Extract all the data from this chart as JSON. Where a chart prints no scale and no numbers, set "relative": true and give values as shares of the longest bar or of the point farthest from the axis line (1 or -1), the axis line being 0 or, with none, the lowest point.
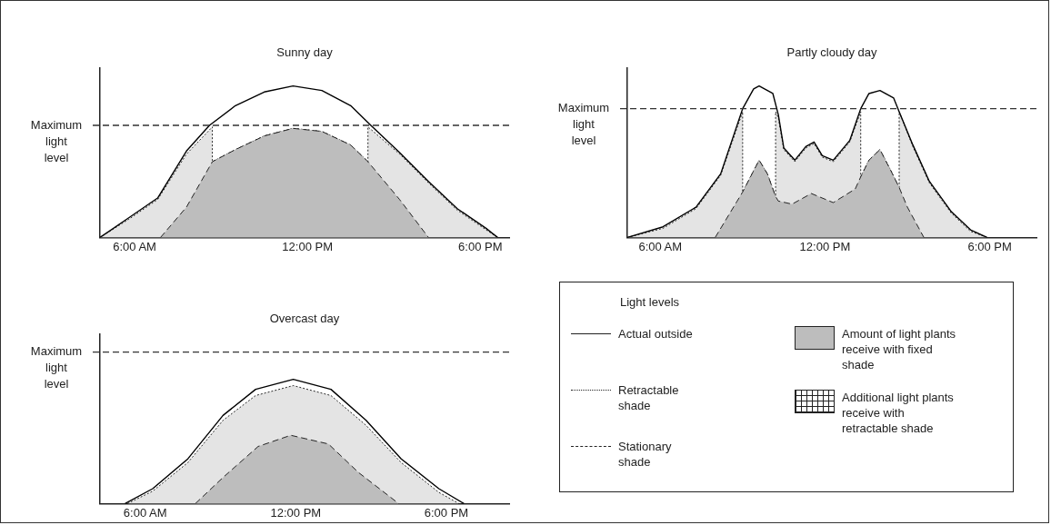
{
  "chart_data": [
    {
      "type": "line",
      "title": "Sunny day",
      "relative": true,
      "xlim": [
        4.8,
        19.0
      ],
      "xticks": [
        {
          "value": 6,
          "label": "6:00 AM"
        },
        {
          "value": 12,
          "label": "12:00 PM"
        },
        {
          "value": 18,
          "label": "6:00 PM"
        }
      ],
      "tick_labels": "x",
      "grid": false,
      "legend": false,
      "marker": "none",
      "ref_lines": [
        {
          "axis": "y",
          "value": 0.74,
          "label": "Maximum light level",
          "line_style": "dashed"
        }
      ],
      "series": [
        {
          "type": "area",
          "color": "#e4e4e4",
          "line_style": "dotted",
          "x": [
            4.8,
            5.8,
            6.8,
            7.8,
            8.7,
            8.7,
            9.5,
            10.5,
            11.5,
            12.5,
            13.5,
            14.1,
            14.1,
            15.2,
            16.2,
            17.2,
            18.2,
            18.6
          ],
          "values": [
            0,
            0.12,
            0.25,
            0.55,
            0.73,
            0.5,
            0.58,
            0.67,
            0.72,
            0.7,
            0.61,
            0.5,
            0.73,
            0.55,
            0.36,
            0.18,
            0.05,
            0
          ]
        },
        {
          "type": "area",
          "color": "#bdbdbd",
          "line_style": "dashed",
          "x": [
            6.9,
            7.8,
            8.7,
            9.5,
            10.5,
            11.5,
            12.5,
            13.5,
            14.1,
            15.2,
            16.2
          ],
          "values": [
            0,
            0.2,
            0.5,
            0.58,
            0.67,
            0.72,
            0.7,
            0.61,
            0.5,
            0.25,
            0
          ]
        },
        {
          "type": "line",
          "color": "#000000",
          "line_style": "solid",
          "x": [
            4.8,
            5.8,
            6.8,
            7.8,
            8.6,
            9.5,
            10.5,
            11.5,
            12.5,
            13.5,
            14.2,
            15.2,
            16.2,
            17.2,
            18.2,
            18.6
          ],
          "values": [
            0,
            0.13,
            0.26,
            0.57,
            0.74,
            0.87,
            0.96,
            1.0,
            0.97,
            0.87,
            0.74,
            0.56,
            0.37,
            0.19,
            0.06,
            0
          ]
        }
      ]
    },
    {
      "type": "line",
      "title": "Partly cloudy day",
      "relative": true,
      "xlim": [
        4.8,
        19.7
      ],
      "xticks": [
        {
          "value": 6,
          "label": "6:00 AM"
        },
        {
          "value": 12,
          "label": "12:00 PM"
        },
        {
          "value": 18,
          "label": "6:00 PM"
        }
      ],
      "tick_labels": "x",
      "grid": false,
      "legend": false,
      "marker": "none",
      "ref_lines": [
        {
          "axis": "y",
          "value": 0.85,
          "label": "Maximum light level",
          "line_style": "dashed"
        }
      ],
      "series": [
        {
          "type": "area",
          "color": "#e4e4e4",
          "line_style": "dotted",
          "x": [
            4.8,
            6.1,
            7.3,
            8.2,
            9.0,
            9.0,
            9.4,
            9.6,
            9.9,
            10.2,
            10.2,
            10.3,
            10.5,
            10.9,
            11.3,
            11.6,
            11.9,
            12.3,
            12.9,
            13.3,
            13.3,
            13.6,
            14.0,
            14.4,
            14.7,
            14.7,
            15.2,
            15.8,
            16.6,
            17.3,
            17.9
          ],
          "values": [
            0,
            0.06,
            0.19,
            0.41,
            0.83,
            0.3,
            0.44,
            0.51,
            0.42,
            0.27,
            0.83,
            0.79,
            0.58,
            0.5,
            0.59,
            0.62,
            0.53,
            0.5,
            0.63,
            0.83,
            0.4,
            0.51,
            0.58,
            0.44,
            0.33,
            0.83,
            0.6,
            0.36,
            0.16,
            0.04,
            0
          ]
        },
        {
          "type": "area",
          "color": "#bdbdbd",
          "line_style": "dashed",
          "x": [
            8.0,
            8.8,
            9.0,
            9.4,
            9.6,
            9.9,
            10.2,
            10.3,
            10.8,
            11.5,
            12.3,
            13.1,
            13.3,
            13.6,
            14.0,
            14.4,
            14.7,
            15.0,
            15.6
          ],
          "values": [
            0,
            0.24,
            0.3,
            0.44,
            0.51,
            0.42,
            0.27,
            0.24,
            0.22,
            0.29,
            0.23,
            0.32,
            0.4,
            0.51,
            0.58,
            0.44,
            0.33,
            0.2,
            0
          ]
        },
        {
          "type": "line",
          "color": "#000000",
          "line_style": "solid",
          "x": [
            4.8,
            6.1,
            7.3,
            8.2,
            9.0,
            9.4,
            9.6,
            10.1,
            10.3,
            10.5,
            10.9,
            11.3,
            11.6,
            11.9,
            12.3,
            12.9,
            13.3,
            13.6,
            14.0,
            14.5,
            14.7,
            15.2,
            15.8,
            16.6,
            17.3,
            17.9
          ],
          "values": [
            0,
            0.07,
            0.2,
            0.42,
            0.85,
            0.98,
            1.0,
            0.95,
            0.81,
            0.59,
            0.51,
            0.6,
            0.63,
            0.54,
            0.51,
            0.64,
            0.85,
            0.95,
            0.97,
            0.92,
            0.83,
            0.61,
            0.37,
            0.17,
            0.05,
            0
          ]
        }
      ]
    },
    {
      "type": "line",
      "title": "Overcast day",
      "relative": true,
      "xlim": [
        4.2,
        20.5
      ],
      "xticks": [
        {
          "value": 6,
          "label": "6:00 AM"
        },
        {
          "value": 12,
          "label": "12:00 PM"
        },
        {
          "value": 18,
          "label": "6:00 PM"
        }
      ],
      "tick_labels": "x",
      "grid": false,
      "legend": false,
      "marker": "none",
      "ref_lines": [
        {
          "axis": "y",
          "value": 1.22,
          "label": "Maximum light level",
          "line_style": "dashed"
        }
      ],
      "series": [
        {
          "type": "area",
          "color": "#e4e4e4",
          "line_style": "dotted",
          "x": [
            5.3,
            6.3,
            7.7,
            9.1,
            10.4,
            11.9,
            13.4,
            14.8,
            16.2,
            17.7,
            18.5
          ],
          "values": [
            0,
            0.1,
            0.33,
            0.67,
            0.87,
            0.95,
            0.87,
            0.63,
            0.33,
            0.09,
            0
          ]
        },
        {
          "type": "area",
          "color": "#bdbdbd",
          "line_style": "dashed",
          "x": [
            8.0,
            9.1,
            10.5,
            11.8,
            13.3,
            14.5,
            16.1
          ],
          "values": [
            0,
            0.21,
            0.46,
            0.55,
            0.48,
            0.25,
            0
          ]
        },
        {
          "type": "line",
          "color": "#000000",
          "line_style": "solid",
          "x": [
            5.2,
            6.3,
            7.7,
            9.1,
            10.4,
            11.9,
            13.4,
            14.8,
            16.2,
            17.7,
            18.7
          ],
          "values": [
            0,
            0.12,
            0.36,
            0.71,
            0.92,
            1.0,
            0.92,
            0.67,
            0.36,
            0.12,
            0
          ]
        }
      ]
    },
    {
      "type": "other",
      "legend_title": "Light levels",
      "annotations": [
        "Actual outside",
        "Retractable shade",
        "Stationary shade",
        "Amount of light plants receive with fixed shade",
        "Additional light plants receive with retractable shade"
      ]
    }
  ]
}
